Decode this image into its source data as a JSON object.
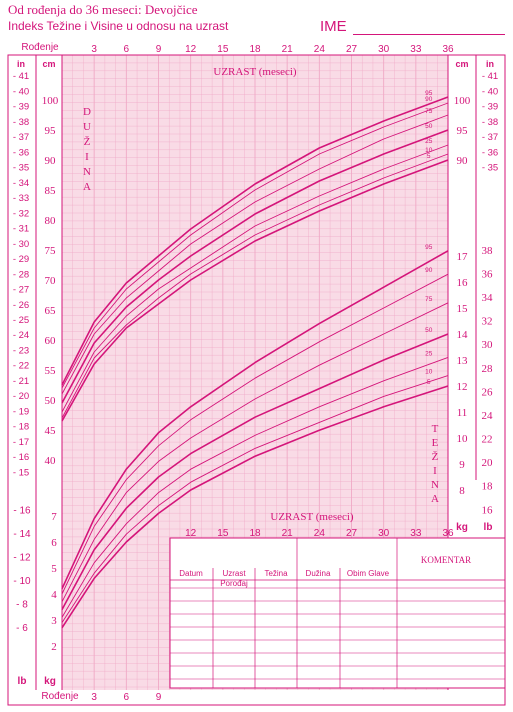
{
  "header": {
    "title_line1": "Od rođenja do 36 meseci: Devojčice",
    "title_line2": "Indeks Težine i Visine u odnosu na uzrast",
    "name_label": "IME"
  },
  "colors": {
    "accent": "#d4157a",
    "grid_fill": "#f9dbe6",
    "grid_line": "#f0a9c6"
  },
  "top_axis": {
    "birth_label": "Rođenje",
    "ticks": [
      "3",
      "6",
      "9",
      "12",
      "15",
      "18",
      "21",
      "24",
      "27",
      "30",
      "33",
      "36"
    ]
  },
  "bottom_axis": {
    "birth_label": "Rođenje",
    "ticks": [
      "3",
      "6",
      "9"
    ]
  },
  "mid_axis": {
    "title": "UZRAST (meseci)",
    "ticks": [
      "12",
      "15",
      "18",
      "21",
      "24",
      "27",
      "30",
      "33",
      "36"
    ],
    "kg": "kg",
    "lb": "lb"
  },
  "length_panel": {
    "title": "UZRAST (meseci)",
    "side_title": [
      "D",
      "U",
      "Ž",
      "I",
      "N",
      "A"
    ],
    "in_label": "in",
    "cm_label": "cm",
    "in_ticks": [
      "41",
      "40",
      "39",
      "38",
      "37",
      "36",
      "35",
      "34",
      "33",
      "32",
      "31",
      "30",
      "29",
      "28",
      "27",
      "26",
      "25",
      "24",
      "23",
      "22",
      "21",
      "20",
      "19",
      "18",
      "17",
      "16",
      "15"
    ],
    "cm_left_ticks": [
      "100",
      "95",
      "90",
      "85",
      "80",
      "75",
      "70",
      "65",
      "60",
      "55",
      "50",
      "45",
      "40"
    ],
    "cm_right_ticks": [
      "100",
      "95",
      "90"
    ],
    "in_right_ticks": [
      "41",
      "40",
      "39",
      "38",
      "37",
      "36",
      "35"
    ]
  },
  "weight_panel": {
    "side_title": [
      "T",
      "E",
      "Ž",
      "I",
      "N",
      "A"
    ],
    "kg_right_ticks": [
      "17",
      "16",
      "15",
      "14",
      "13",
      "12",
      "11",
      "10",
      "9",
      "8"
    ],
    "lb_right_ticks": [
      "38",
      "36",
      "34",
      "32",
      "30",
      "28",
      "26",
      "24",
      "22",
      "20",
      "18",
      "16"
    ],
    "kg_left_ticks": [
      "7",
      "6",
      "5",
      "4",
      "3",
      "2"
    ],
    "lb_left_ticks": [
      "16",
      "14",
      "12",
      "10",
      "8",
      "6"
    ],
    "lb_label": "lb",
    "kg_label": "kg"
  },
  "table": {
    "headers": [
      "Datum",
      "Uzrast Porođaj",
      "Težina",
      "Dužina",
      "Obim Glave"
    ],
    "comment": "KOMENTAR"
  },
  "chart_data": [
    {
      "type": "line",
      "title": "UZRAST (meseci)",
      "xlabel": "UZRAST (meseci)",
      "ylabel": "DUŽINA",
      "xlim": [
        0,
        36
      ],
      "ylim": [
        38,
        104
      ],
      "x": [
        0,
        3,
        6,
        9,
        12,
        18,
        24,
        30,
        36
      ],
      "series": [
        {
          "name": "95",
          "values": [
            52.5,
            63.0,
            69.5,
            74.0,
            78.5,
            86.0,
            92.0,
            96.5,
            100.5
          ]
        },
        {
          "name": "90",
          "values": [
            52.0,
            62.0,
            68.5,
            73.0,
            77.5,
            85.0,
            91.0,
            95.5,
            99.5
          ]
        },
        {
          "name": "75",
          "values": [
            51.0,
            61.0,
            67.0,
            71.5,
            76.0,
            83.0,
            88.5,
            93.5,
            97.5
          ]
        },
        {
          "name": "50",
          "values": [
            49.5,
            59.5,
            65.5,
            70.0,
            74.0,
            81.0,
            86.5,
            91.0,
            95.0
          ]
        },
        {
          "name": "25",
          "values": [
            48.0,
            58.0,
            64.0,
            68.5,
            72.0,
            79.0,
            84.0,
            88.5,
            92.5
          ]
        },
        {
          "name": "10",
          "values": [
            47.0,
            57.0,
            62.5,
            67.0,
            71.0,
            77.5,
            82.5,
            87.0,
            91.0
          ]
        },
        {
          "name": "5",
          "values": [
            46.5,
            56.0,
            62.0,
            66.0,
            70.0,
            76.5,
            81.5,
            86.0,
            90.0
          ]
        }
      ]
    },
    {
      "type": "line",
      "title": "UZRAST (meseci)",
      "xlabel": "UZRAST (meseci)",
      "ylabel": "TEŽINA",
      "xlim": [
        0,
        36
      ],
      "ylim": [
        1.5,
        18.5
      ],
      "x": [
        0,
        3,
        6,
        9,
        12,
        18,
        24,
        30,
        36
      ],
      "series": [
        {
          "name": "95",
          "values": [
            4.2,
            6.9,
            8.8,
            10.2,
            11.2,
            12.9,
            14.4,
            15.8,
            17.2
          ]
        },
        {
          "name": "90",
          "values": [
            4.0,
            6.6,
            8.4,
            9.7,
            10.7,
            12.3,
            13.7,
            15.0,
            16.3
          ]
        },
        {
          "name": "75",
          "values": [
            3.7,
            6.1,
            7.9,
            9.1,
            10.0,
            11.5,
            12.8,
            14.0,
            15.2
          ]
        },
        {
          "name": "50",
          "values": [
            3.4,
            5.7,
            7.3,
            8.5,
            9.4,
            10.8,
            11.9,
            13.0,
            14.0
          ]
        },
        {
          "name": "25",
          "values": [
            3.1,
            5.2,
            6.7,
            7.9,
            8.8,
            10.1,
            11.2,
            12.2,
            13.1
          ]
        },
        {
          "name": "10",
          "values": [
            2.9,
            4.8,
            6.3,
            7.4,
            8.3,
            9.6,
            10.6,
            11.6,
            12.4
          ]
        },
        {
          "name": "5",
          "values": [
            2.7,
            4.6,
            6.0,
            7.1,
            8.0,
            9.3,
            10.3,
            11.2,
            12.0
          ]
        }
      ]
    }
  ]
}
